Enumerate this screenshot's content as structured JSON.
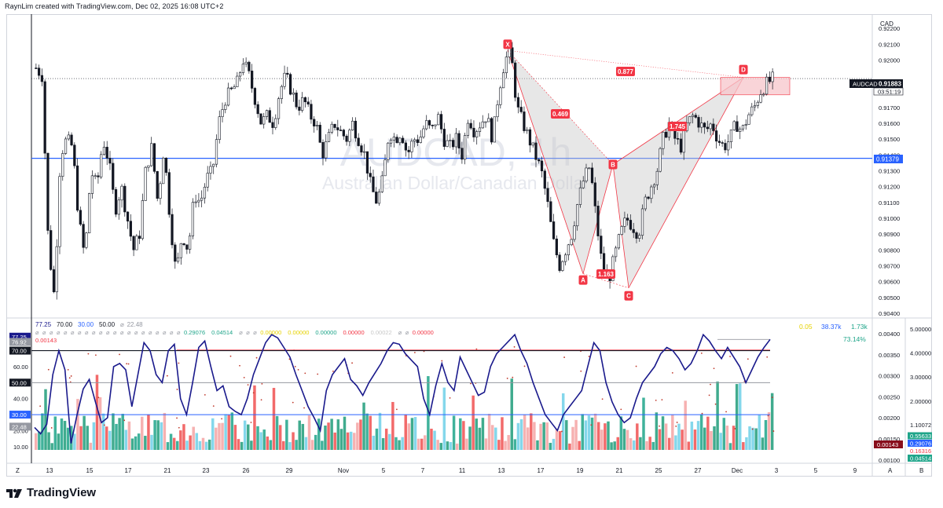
{
  "header": {
    "credit": "RaynLim created with TradingView.com, Dec 02, 2025 16:08 UTC+2"
  },
  "watermark": {
    "symbol": "AUDCAD, 1h",
    "description": "Australian Dollar/Canadian Dollar"
  },
  "price_scale": {
    "currency": "CAD",
    "ticks": [
      "0.92200",
      "0.92100",
      "0.92000",
      "0.91800",
      "0.91700",
      "0.91600",
      "0.91500",
      "0.91400",
      "0.91300",
      "0.91200",
      "0.91100",
      "0.91000",
      "0.90900",
      "0.90800",
      "0.90700",
      "0.90600",
      "0.90500",
      "0.90400"
    ],
    "last_symbol": "AUDCAD",
    "last_price": "0.91883",
    "countdown": "03:51:19",
    "level_label": "0.91379"
  },
  "pattern": {
    "points": [
      {
        "label": "X",
        "t": "Nov 13",
        "price": 0.9206
      },
      {
        "label": "A",
        "t": "Nov 19",
        "price": 0.9065
      },
      {
        "label": "B",
        "t": "Nov 20",
        "price": 0.9134
      },
      {
        "label": "C",
        "t": "Nov 21",
        "price": 0.9056
      },
      {
        "label": "D",
        "t": "Nov 28",
        "price": 0.9189
      }
    ],
    "ratios": [
      "0.877",
      "0.469",
      "1.163",
      "1.745"
    ]
  },
  "indicator": {
    "legend_row1": [
      "77.25",
      "70.00",
      "30.00",
      "50.00",
      "⌀",
      "22.48"
    ],
    "legend_row2": [
      "⌀",
      "⌀",
      "⌀",
      "⌀",
      "⌀",
      "⌀",
      "⌀",
      "⌀",
      "⌀",
      "⌀",
      "⌀",
      "⌀",
      "⌀",
      "⌀",
      "⌀",
      "⌀",
      "⌀",
      "⌀",
      "⌀",
      "⌀",
      "⌀",
      "0.29076",
      "0.04514",
      "⌀",
      "⌀",
      "⌀",
      "0.00000",
      "0.00000",
      "0.00000",
      "0.00000",
      "0.00022",
      "⌀",
      "⌀",
      "0.00000"
    ],
    "legend_row3": "0.00143",
    "right_values": [
      "0.05",
      "38.37k",
      "1.73k"
    ],
    "right_pct": "73.14%",
    "left_ticks": [
      "60.00",
      "40.00",
      "20.00",
      "10.00"
    ],
    "left_badges": [
      "77.25",
      "76.92",
      "70.00",
      "50.00",
      "30.00",
      "22.48"
    ],
    "right_ticks": [
      "0.00400",
      "0.00350",
      "0.00300",
      "0.00250",
      "0.00200",
      "0.00150",
      "0.00100"
    ],
    "far_ticks": [
      "5.00000",
      "4.00000",
      "3.00000",
      "2.00000"
    ],
    "far_value": "1.10072",
    "badges": [
      "0.55633",
      "0.29076",
      "0.16316",
      "0.04514"
    ],
    "mid_badge": "0.00143"
  },
  "time_axis": {
    "labels": [
      "13",
      "15",
      "17",
      "21",
      "23",
      "26",
      "29",
      "Nov",
      "5",
      "7",
      "11",
      "13",
      "17",
      "19",
      "21",
      "25",
      "27",
      "Dec",
      "3",
      "5",
      "9"
    ],
    "corner_left": "Z",
    "corner_a": "A",
    "corner_b": "B"
  },
  "footer": {
    "brand": "TradingView"
  },
  "colors": {
    "up": "#ffffff",
    "down": "#131722",
    "level": "#2962ff",
    "pattern_line": "#f23645",
    "pattern_fill": "#c9c9c9",
    "zone": "#f7c5cb",
    "rsi": "#1a1a8c",
    "vol_red": "#f05050",
    "vol_green": "#1fa58a",
    "vol_blue": "#6fd0e8"
  },
  "chart_data": [
    {
      "type": "line",
      "title": "AUDCAD, 1h",
      "series_key": "candles",
      "price_ylim": [
        0.9038,
        0.9228
      ],
      "level": 0.91379,
      "last_price": 0.91883,
      "close_path": [
        0.9195,
        0.919,
        0.9085,
        0.905,
        0.914,
        0.915,
        0.9145,
        0.91,
        0.9075,
        0.913,
        0.912,
        0.915,
        0.9135,
        0.9105,
        0.912,
        0.91,
        0.908,
        0.909,
        0.913,
        0.9145,
        0.911,
        0.9145,
        0.91,
        0.9065,
        0.909,
        0.908,
        0.9115,
        0.911,
        0.9125,
        0.913,
        0.916,
        0.9175,
        0.918,
        0.9185,
        0.92,
        0.919,
        0.9175,
        0.916,
        0.9165,
        0.916,
        0.918,
        0.919,
        0.918,
        0.917,
        0.9175,
        0.9165,
        0.916,
        0.914,
        0.915,
        0.916,
        0.9155,
        0.915,
        0.916,
        0.915,
        0.914,
        0.912,
        0.911,
        0.9125,
        0.9155,
        0.915,
        0.9155,
        0.914,
        0.915,
        0.915,
        0.916,
        0.9155,
        0.9165,
        0.915,
        0.9145,
        0.915,
        0.914,
        0.9165,
        0.9155,
        0.916,
        0.9165,
        0.915,
        0.918,
        0.92,
        0.9205,
        0.917,
        0.916,
        0.915,
        0.914,
        0.913,
        0.911,
        0.9085,
        0.907,
        0.908,
        0.909,
        0.911,
        0.9125,
        0.9133,
        0.91,
        0.907,
        0.906,
        0.9075,
        0.909,
        0.91,
        0.9095,
        0.909,
        0.911,
        0.912,
        0.913,
        0.915,
        0.916,
        0.915,
        0.9145,
        0.916,
        0.9165,
        0.916,
        0.9155,
        0.916,
        0.915,
        0.9145,
        0.915,
        0.916,
        0.9155,
        0.9165,
        0.917,
        0.918,
        0.9185,
        0.9188
      ]
    },
    {
      "type": "line",
      "series_key": "rsi",
      "ylim": [
        0,
        100
      ],
      "levels": [
        70,
        50,
        30
      ],
      "values": [
        22,
        18,
        24,
        55,
        70,
        58,
        12,
        30,
        46,
        52,
        38,
        25,
        28,
        60,
        62,
        58,
        35,
        55,
        75,
        70,
        55,
        50,
        70,
        74,
        40,
        30,
        50,
        72,
        76,
        60,
        45,
        48,
        35,
        32,
        30,
        40,
        55,
        65,
        75,
        80,
        78,
        72,
        66,
        55,
        45,
        35,
        28,
        20,
        45,
        55,
        60,
        65,
        52,
        48,
        42,
        50,
        56,
        62,
        70,
        75,
        74,
        68,
        64,
        60,
        40,
        30,
        48,
        62,
        50,
        45,
        66,
        58,
        50,
        42,
        44,
        60,
        68,
        72,
        76,
        80,
        70,
        62,
        50,
        40,
        30,
        25,
        20,
        30,
        35,
        40,
        45,
        60,
        75,
        70,
        50,
        38,
        30,
        25,
        28,
        40,
        50,
        55,
        60,
        68,
        72,
        70,
        65,
        58,
        62,
        70,
        80,
        76,
        70,
        65,
        72,
        66,
        60,
        50,
        58,
        66,
        72,
        77
      ]
    }
  ]
}
